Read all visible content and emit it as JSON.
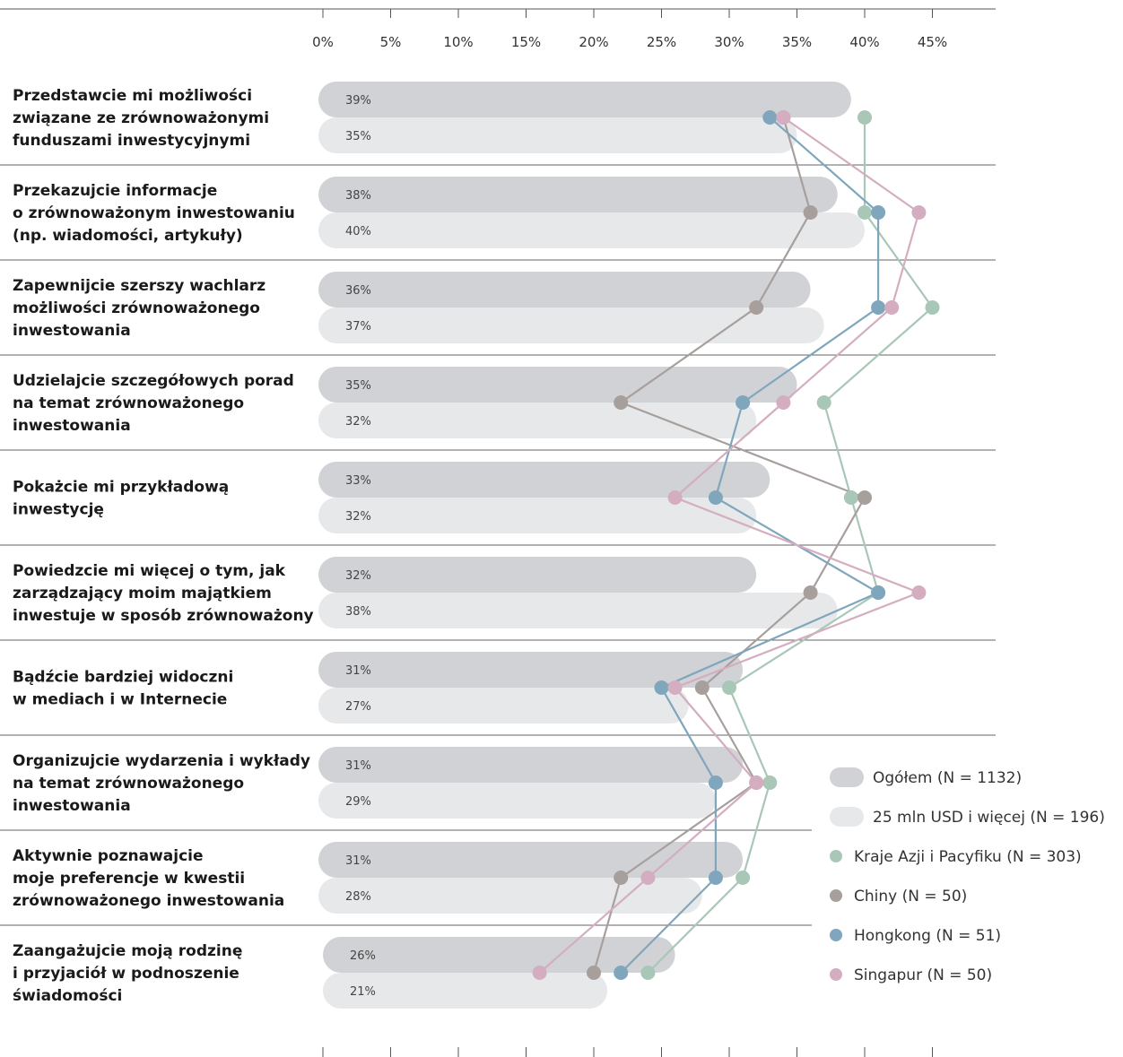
{
  "chart_data": {
    "type": "bar",
    "orientation": "horizontal",
    "xlim": [
      0,
      45
    ],
    "x_ticks": [
      "0%",
      "5%",
      "10%",
      "15%",
      "20%",
      "25%",
      "30%",
      "35%",
      "40%",
      "45%"
    ],
    "categories": [
      [
        "Przedstawcie mi możliwości",
        "związane ze zrównoważonymi",
        "funduszami inwestycyjnymi"
      ],
      [
        "Przekazujcie informacje",
        "o zrównoważonym inwestowaniu",
        "(np. wiadomości, artykuły)"
      ],
      [
        "Zapewnijcie szerszy wachlarz",
        "możliwości zrównoważonego",
        "inwestowania"
      ],
      [
        "Udzielajcie szczegółowych porad",
        "na temat zrównoważonego",
        "inwestowania"
      ],
      [
        "Pokażcie mi przykładową",
        "inwestycję"
      ],
      [
        "Powiedzcie mi więcej o tym, jak",
        "zarządzający moim majątkiem",
        "inwestuje w sposób zrównoważony"
      ],
      [
        "Bądźcie bardziej widoczni",
        "w mediach i w Internecie"
      ],
      [
        "Organizujcie wydarzenia i wykłady",
        "na temat zrównoważonego",
        "inwestowania"
      ],
      [
        "Aktywnie poznawajcie",
        "moje preferencje w kwestii",
        "zrównoważonego inwestowania"
      ],
      [
        "Zaangażujcie moją rodzinę",
        "i przyjaciół w podnoszenie",
        "świadomości"
      ]
    ],
    "bar_series": [
      {
        "name": "Ogółem (N = 1132)",
        "color": "#d1d2d6",
        "values": [
          39,
          38,
          36,
          35,
          33,
          32,
          31,
          31,
          31,
          26
        ],
        "labels": [
          "39%",
          "38%",
          "36%",
          "35%",
          "33%",
          "32%",
          "31%",
          "31%",
          "31%",
          "26%"
        ]
      },
      {
        "name": "25 mln USD i więcej (N = 196)",
        "color": "#e7e8ea",
        "values": [
          35,
          40,
          37,
          32,
          32,
          38,
          27,
          29,
          28,
          21
        ],
        "labels": [
          "35%",
          "40%",
          "37%",
          "32%",
          "32%",
          "38%",
          "27%",
          "29%",
          "28%",
          "21%"
        ]
      }
    ],
    "line_series": [
      {
        "name": "Kraje Azji i Pacyfiku (N = 303)",
        "color": "#a9c7b7",
        "values": [
          40,
          40,
          45,
          37,
          39,
          41,
          30,
          33,
          31,
          24
        ]
      },
      {
        "name": "Chiny (N = 50)",
        "color": "#a79f9c",
        "values": [
          34,
          36,
          32,
          22,
          40,
          36,
          28,
          32,
          22,
          20
        ]
      },
      {
        "name": "Hongkong (N = 51)",
        "color": "#7fa6bd",
        "values": [
          33,
          41,
          41,
          31,
          29,
          41,
          25,
          29,
          29,
          22
        ]
      },
      {
        "name": "Singapur (N = 50)",
        "color": "#d4adc0",
        "values": [
          34,
          44,
          42,
          34,
          26,
          44,
          26,
          32,
          24,
          16
        ]
      }
    ],
    "legend_position": "right"
  }
}
